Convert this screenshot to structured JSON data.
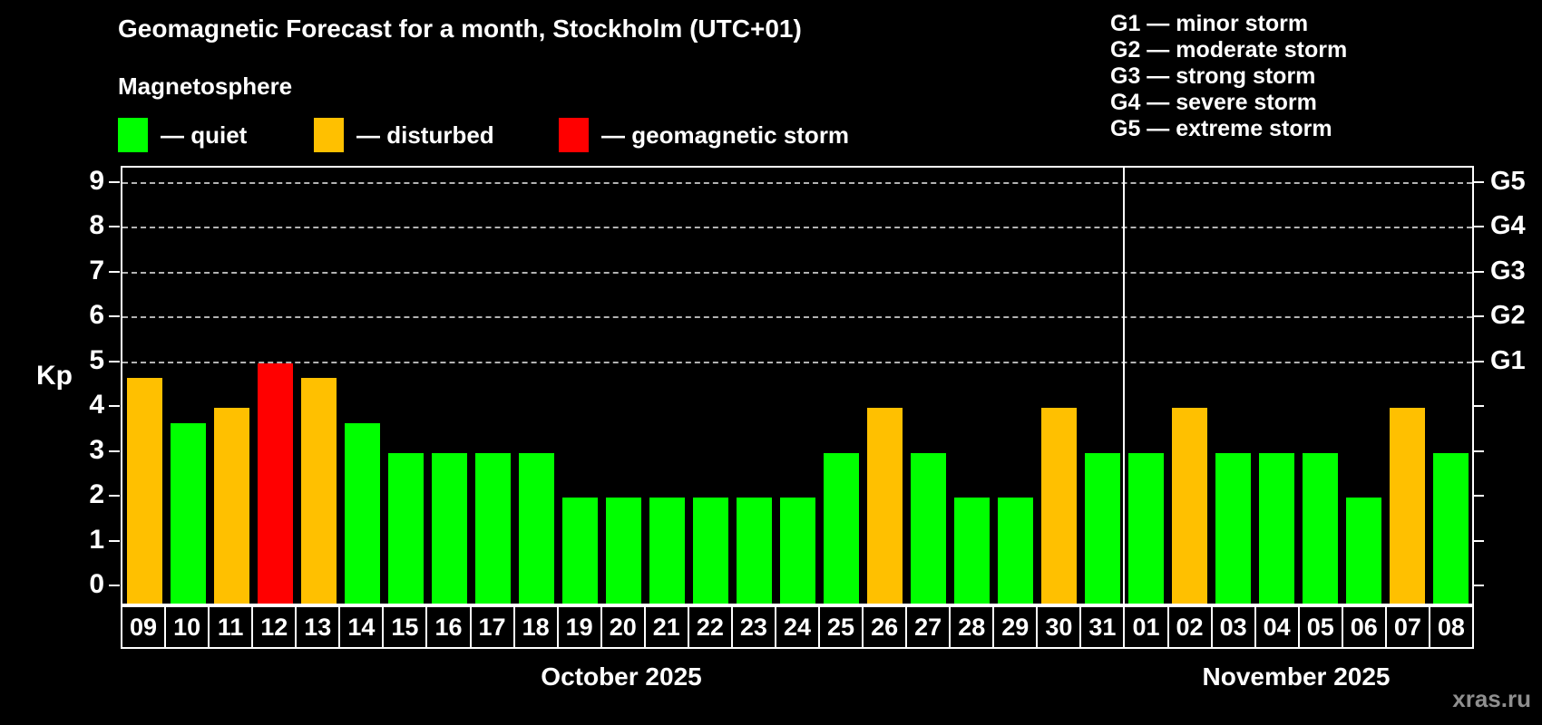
{
  "title": "Geomagnetic Forecast for a month, Stockholm (UTC+01)",
  "subtitle": "Magnetosphere",
  "legend": {
    "items": [
      {
        "status": "quiet",
        "label": "— quiet",
        "color": "#00ff00"
      },
      {
        "status": "disturbed",
        "label": "— disturbed",
        "color": "#ffc000"
      },
      {
        "status": "storm",
        "label": "— geomagnetic storm",
        "color": "#ff0000"
      }
    ]
  },
  "storm_scale": [
    {
      "level": "G1",
      "kp": 5,
      "label": "G1 — minor storm"
    },
    {
      "level": "G2",
      "kp": 6,
      "label": "G2 — moderate storm"
    },
    {
      "level": "G3",
      "kp": 7,
      "label": "G3 — strong storm"
    },
    {
      "level": "G4",
      "kp": 8,
      "label": "G4 — severe storm"
    },
    {
      "level": "G5",
      "kp": 9,
      "label": "G5 — extreme storm"
    }
  ],
  "chart_data": {
    "type": "bar",
    "title": "Geomagnetic Forecast for a month, Stockholm (UTC+01)",
    "ylabel": "Kp",
    "ylim": [
      0,
      9
    ],
    "yticks": [
      0,
      1,
      2,
      3,
      4,
      5,
      6,
      7,
      8,
      9
    ],
    "gridlines_kp": [
      5,
      6,
      7,
      8,
      9
    ],
    "grid": "dashed horizontal lines at G-storm levels only",
    "legend_position": "top-left",
    "categories": [
      "09",
      "10",
      "11",
      "12",
      "13",
      "14",
      "15",
      "16",
      "17",
      "18",
      "19",
      "20",
      "21",
      "22",
      "23",
      "24",
      "25",
      "26",
      "27",
      "28",
      "29",
      "30",
      "31",
      "01",
      "02",
      "03",
      "04",
      "05",
      "06",
      "07",
      "08"
    ],
    "values": [
      4.67,
      3.67,
      4,
      5,
      4.67,
      3.67,
      3,
      3,
      3,
      3,
      2,
      2,
      2,
      2,
      2,
      2,
      3,
      4,
      3,
      2,
      2,
      4,
      3,
      3,
      4,
      3,
      3,
      3,
      2,
      4,
      3
    ],
    "statuses": [
      "disturbed",
      "quiet",
      "disturbed",
      "storm",
      "disturbed",
      "quiet",
      "quiet",
      "quiet",
      "quiet",
      "quiet",
      "quiet",
      "quiet",
      "quiet",
      "quiet",
      "quiet",
      "quiet",
      "quiet",
      "disturbed",
      "quiet",
      "quiet",
      "quiet",
      "disturbed",
      "quiet",
      "quiet",
      "disturbed",
      "quiet",
      "quiet",
      "quiet",
      "quiet",
      "disturbed",
      "quiet"
    ],
    "colors": {
      "quiet": "#00ff00",
      "disturbed": "#ffc000",
      "storm": "#ff0000"
    },
    "months": [
      {
        "label": "October 2025",
        "days": 23
      },
      {
        "label": "November 2025",
        "days": 8
      }
    ]
  },
  "watermark": "xras.ru"
}
